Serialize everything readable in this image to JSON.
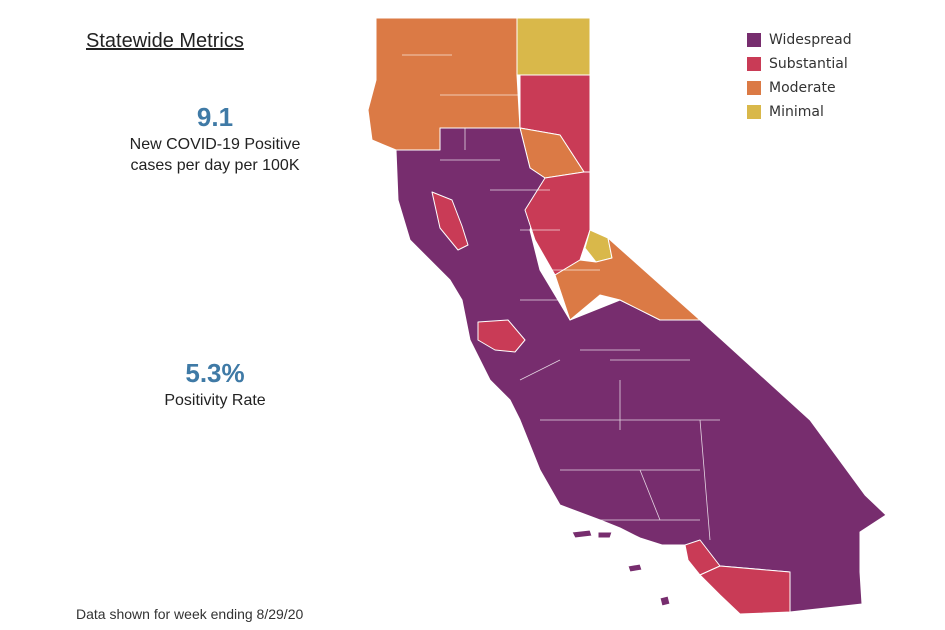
{
  "metrics": {
    "title": "Statewide Metrics",
    "cases": {
      "value": "9.1",
      "label_line1": "New COVID-19 Positive",
      "label_line2": "cases per day per 100K"
    },
    "positivity": {
      "value": "5.3%",
      "label": "Positivity Rate"
    }
  },
  "footer": {
    "note": "Data shown for week ending 8/29/20"
  },
  "legend": {
    "items": [
      {
        "label": "Widespread",
        "color": "#772d6e"
      },
      {
        "label": "Substantial",
        "color": "#c93b56"
      },
      {
        "label": "Moderate",
        "color": "#db7a45"
      },
      {
        "label": "Minimal",
        "color": "#d9b84a"
      }
    ]
  },
  "map": {
    "regions": [
      {
        "tier": "Moderate"
      },
      {
        "tier": "Minimal"
      },
      {
        "tier": "Substantial"
      },
      {
        "tier": "Moderate"
      },
      {
        "tier": "Widespread"
      },
      {
        "tier": "Substantial"
      },
      {
        "tier": "Minimal"
      },
      {
        "tier": "Moderate"
      }
    ]
  }
}
